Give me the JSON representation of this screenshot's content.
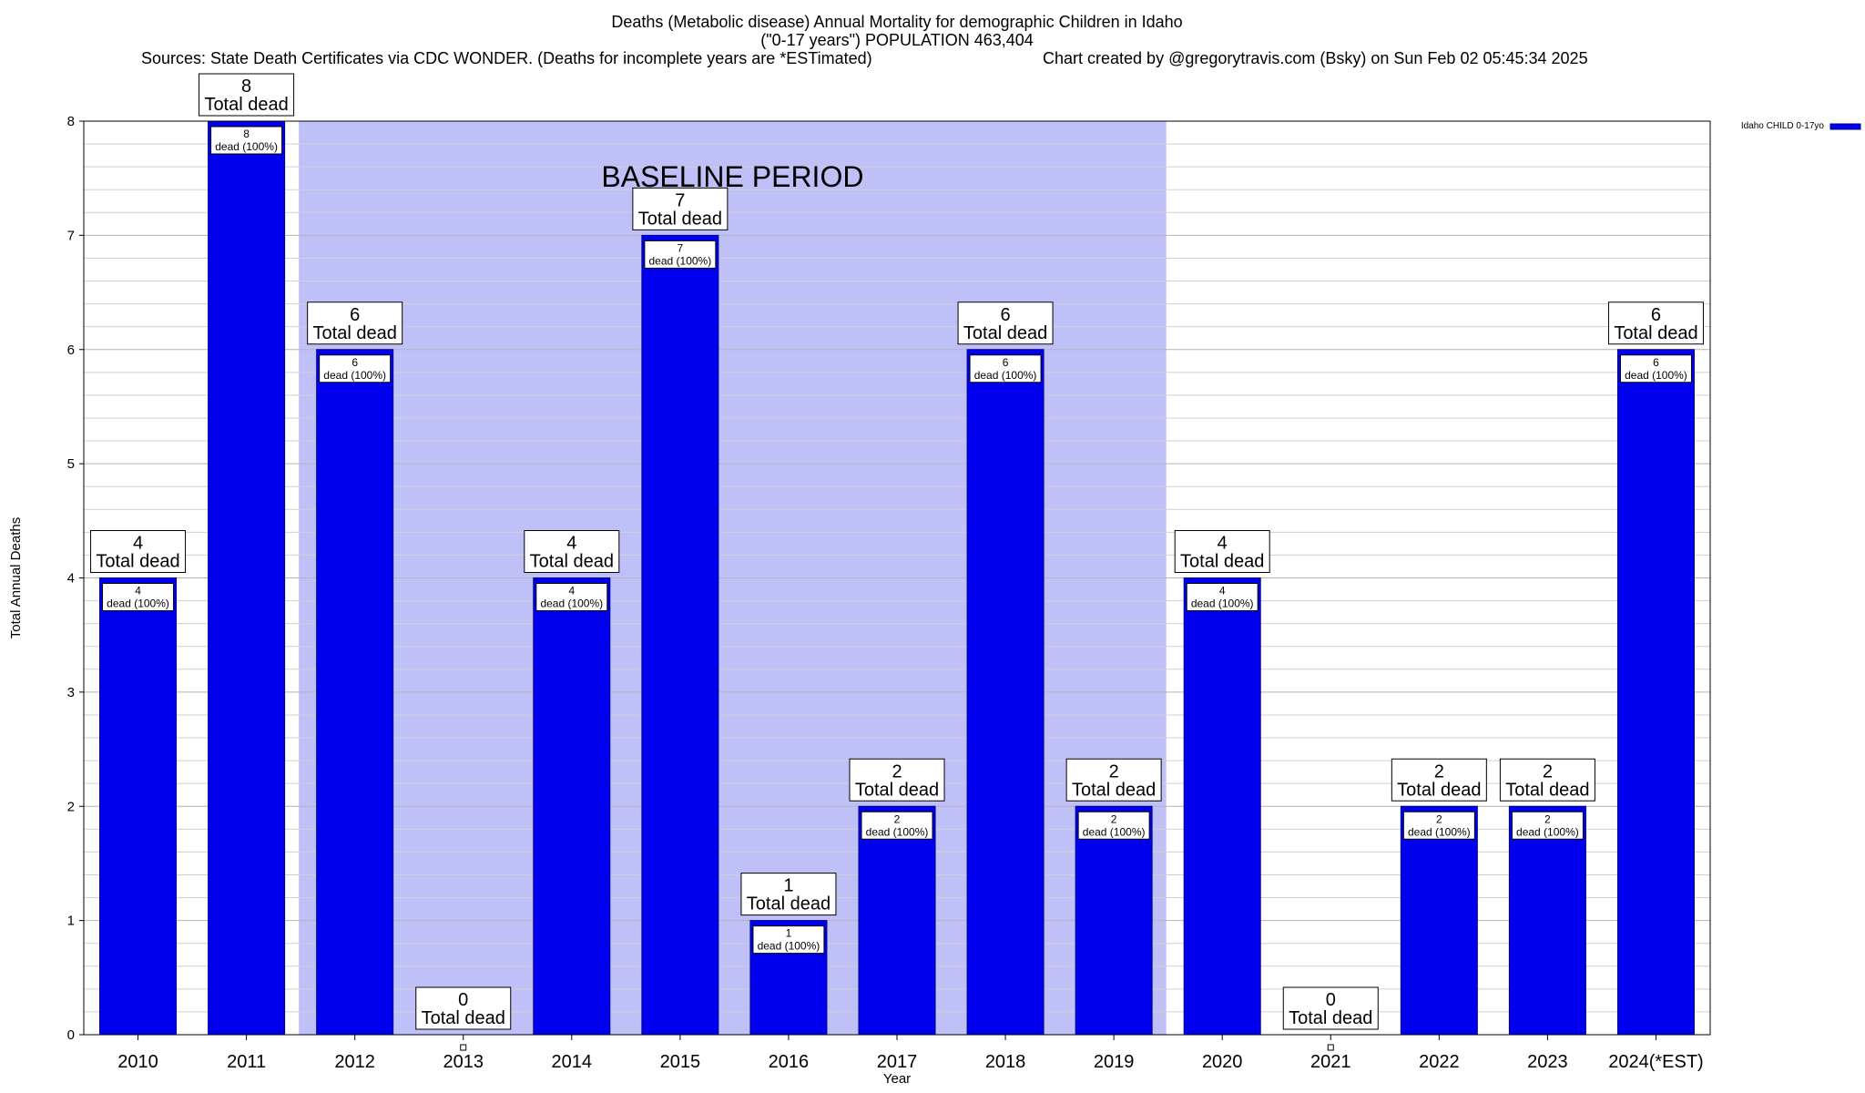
{
  "header": {
    "title_line1": "Deaths (Metabolic disease) Annual Mortality for demographic Children in Idaho",
    "title_line2": "(\"0-17 years\") POPULATION 463,404",
    "sources": "Sources: State Death Certificates via CDC WONDER. (Deaths for incomplete years are *ESTimated)",
    "credit": "Chart created by @gregorytravis.com (Bsky) on Sun Feb 02 05:45:34 2025"
  },
  "chart_data": {
    "type": "bar",
    "title": "Deaths (Metabolic disease) Annual Mortality for demographic Children in Idaho",
    "xlabel": "Year",
    "ylabel": "Total Annual Deaths",
    "ylim": [
      0,
      8
    ],
    "yticks": [
      "0",
      "1",
      "2",
      "3",
      "4",
      "5",
      "6",
      "7",
      "8"
    ],
    "grid": true,
    "legend_position": "top-right",
    "categories": [
      "2010",
      "2011",
      "2012",
      "2013",
      "2014",
      "2015",
      "2016",
      "2017",
      "2018",
      "2019",
      "2020",
      "2021",
      "2022",
      "2023",
      "2024(*EST)"
    ],
    "series": [
      {
        "name": "Idaho CHILD 0-17yo",
        "color": "#0000ee",
        "values": [
          4,
          8,
          6,
          0,
          4,
          7,
          1,
          2,
          6,
          2,
          4,
          0,
          2,
          2,
          6
        ],
        "value_labels": [
          "4",
          "8",
          "6",
          "0",
          "4",
          "7",
          "1",
          "2",
          "6",
          "2",
          "4",
          "0",
          "2",
          "2",
          "6"
        ],
        "inner_label_suffix": "dead (100%)"
      }
    ],
    "total_label_suffix": "Total dead",
    "baseline": {
      "label": "BASELINE PERIOD",
      "start": "2012",
      "end": "2019",
      "color": "#c0c0f8"
    }
  }
}
